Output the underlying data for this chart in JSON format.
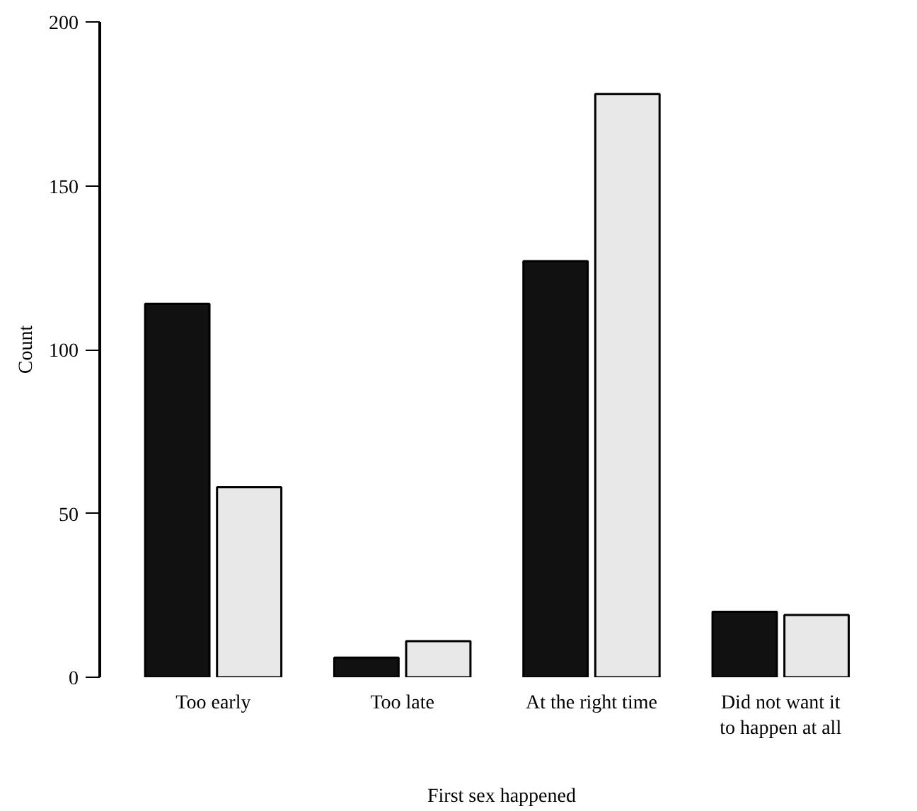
{
  "chart_data": {
    "type": "bar",
    "xlabel": "First sex happened",
    "ylabel": "Count",
    "categories": [
      "Too early",
      "Too late",
      "At the right time",
      "Did not want it\nto happen at all"
    ],
    "series": [
      {
        "color": "#111111",
        "values": [
          114,
          6,
          127,
          20
        ]
      },
      {
        "color": "#e8e8e8",
        "values": [
          58,
          11,
          178,
          19
        ]
      }
    ],
    "ylim": [
      0,
      200
    ],
    "yticks": [
      0,
      50,
      100,
      150,
      200
    ],
    "grid": false
  }
}
